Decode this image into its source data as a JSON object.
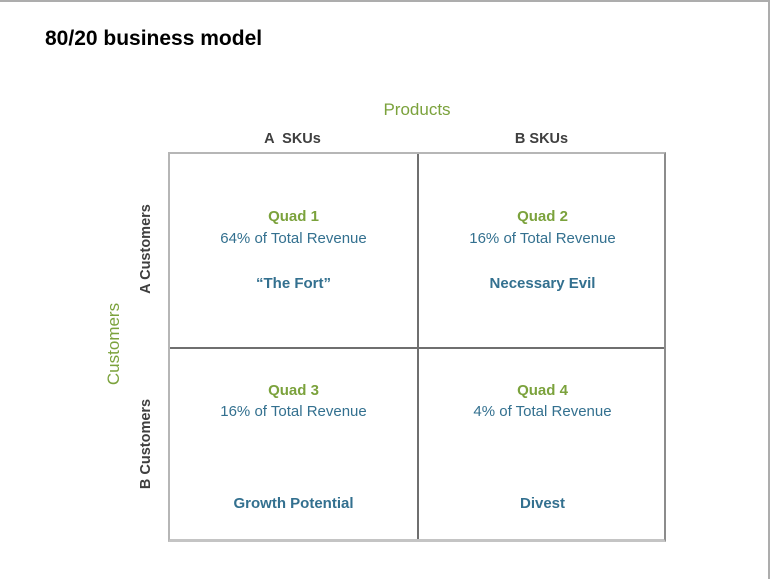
{
  "title": "80/20 business model",
  "colors": {
    "green": "#7BA23C",
    "blue": "#33708F",
    "dark": "#3F3F3F"
  },
  "axes": {
    "products_label": "Products",
    "customers_label": "Customers",
    "col_headers": [
      "A  SKUs",
      "B SKUs"
    ],
    "row_headers": [
      "A Customers",
      "B Customers"
    ]
  },
  "quadrants": [
    {
      "name": "Quad 1",
      "revenue": "64% of Total Revenue",
      "label": "“The Fort”"
    },
    {
      "name": "Quad 2",
      "revenue": "16% of Total Revenue",
      "label": "Necessary Evil"
    },
    {
      "name": "Quad 3",
      "revenue": "16% of Total Revenue",
      "label": "Growth Potential"
    },
    {
      "name": "Quad 4",
      "revenue": "4% of Total Revenue",
      "label": "Divest"
    }
  ]
}
